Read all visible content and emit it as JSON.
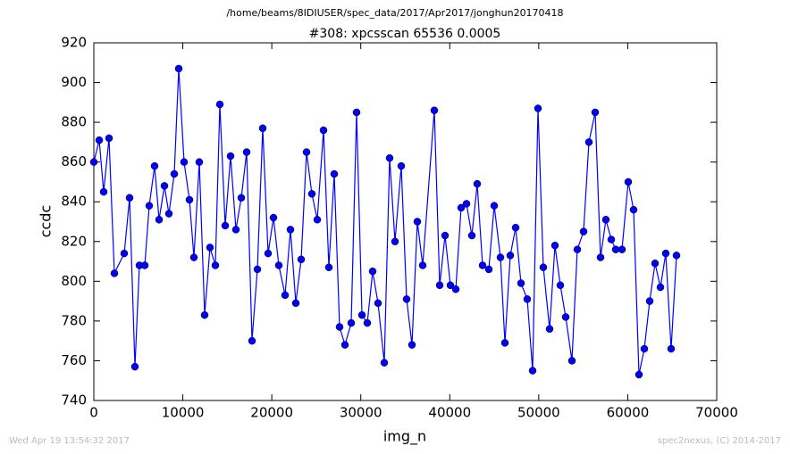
{
  "chart_data": {
    "type": "line",
    "suptitle": "/home/beams/8IDIUSER/spec_data/2017/Apr2017/jonghun20170418",
    "title": "#308: xpcsscan 65536 0.0005",
    "xlabel": "img_n",
    "ylabel": "ccdc",
    "footer_left": "Wed Apr 19 13:54:32 2017",
    "footer_right": "spec2nexus, (C) 2014-2017",
    "xlim": [
      0,
      70000
    ],
    "xticks": [
      0,
      10000,
      20000,
      30000,
      40000,
      50000,
      60000,
      70000
    ],
    "ylim": [
      740,
      920
    ],
    "yticks": [
      740,
      760,
      780,
      800,
      820,
      840,
      860,
      880,
      900,
      920
    ],
    "series": [
      {
        "color": "#0000ff",
        "x": [
          0,
          603,
          1105,
          1707,
          2310,
          3415,
          4017,
          4620,
          5122,
          5725,
          6227,
          6829,
          7331,
          7934,
          8436,
          9039,
          9541,
          10143,
          10745,
          11248,
          11851,
          12453,
          13055,
          13658,
          14160,
          14763,
          15366,
          15968,
          16571,
          17174,
          17776,
          18379,
          18981,
          19584,
          20186,
          20789,
          21492,
          22095,
          22697,
          23300,
          23902,
          24505,
          25108,
          25811,
          26413,
          27016,
          27618,
          28221,
          28924,
          29526,
          30129,
          30732,
          31334,
          31937,
          32640,
          33242,
          33845,
          34548,
          35150,
          35753,
          36356,
          36958,
          38264,
          38866,
          39469,
          40072,
          40674,
          41277,
          41879,
          42482,
          43084,
          43687,
          44390,
          44993,
          45696,
          46198,
          46800,
          47403,
          48006,
          48709,
          49311,
          49914,
          50516,
          51219,
          51822,
          52424,
          53027,
          53730,
          54333,
          55036,
          55638,
          56341,
          56944,
          57546,
          58149,
          58651,
          59354,
          60057,
          60660,
          61262,
          61865,
          62467,
          63070,
          63672,
          64275,
          64878,
          65480
        ],
        "values": [
          860,
          871,
          845,
          872,
          804,
          814,
          842,
          757,
          808,
          808,
          838,
          858,
          831,
          848,
          834,
          854,
          907,
          860,
          841,
          812,
          860,
          783,
          817,
          808,
          889,
          828,
          863,
          826,
          842,
          865,
          770,
          806,
          877,
          814,
          832,
          808,
          793,
          826,
          789,
          811,
          865,
          844,
          831,
          876,
          807,
          854,
          777,
          768,
          779,
          885,
          783,
          779,
          805,
          789,
          759,
          862,
          820,
          858,
          791,
          768,
          830,
          808,
          886,
          798,
          823,
          798,
          796,
          837,
          839,
          823,
          849,
          808,
          806,
          838,
          812,
          769,
          813,
          827,
          799,
          791,
          755,
          887,
          807,
          776,
          818,
          798,
          782,
          760,
          816,
          825,
          870,
          885,
          812,
          831,
          821,
          816,
          816,
          850,
          836,
          753,
          766,
          790,
          809,
          797,
          814,
          766,
          813
        ]
      }
    ]
  }
}
